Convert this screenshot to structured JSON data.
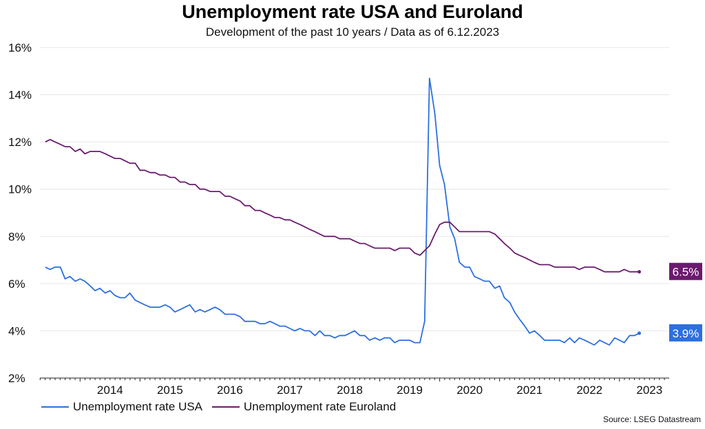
{
  "chart_data": {
    "type": "line",
    "title": "Unemployment rate USA and Euroland",
    "subtitle": "Development of the past 10 years / Data as of 6.12.2023",
    "source": "Source: LSEG Datastream",
    "ylim": [
      2,
      16
    ],
    "yticks": [
      "2%",
      "4%",
      "6%",
      "8%",
      "10%",
      "12%",
      "14%",
      "16%"
    ],
    "ytick_values": [
      2,
      4,
      6,
      8,
      10,
      12,
      14,
      16
    ],
    "xlim": [
      2013.33,
      2023.83
    ],
    "xticks": [
      "2014",
      "2015",
      "2016",
      "2017",
      "2018",
      "2019",
      "2020",
      "2021",
      "2022",
      "2023"
    ],
    "xtick_values": [
      2014,
      2015,
      2016,
      2017,
      2018,
      2019,
      2020,
      2021,
      2022,
      2023
    ],
    "grid": "horizontal",
    "legend_position": "bottom-left",
    "series": [
      {
        "name": "Unemployment rate USA",
        "color": "#2c6fe0",
        "end_label": "3.9%",
        "x": [
          2013.42,
          2013.5,
          2013.58,
          2013.67,
          2013.75,
          2013.83,
          2013.92,
          2014.0,
          2014.08,
          2014.17,
          2014.25,
          2014.33,
          2014.42,
          2014.5,
          2014.58,
          2014.67,
          2014.75,
          2014.83,
          2014.92,
          2015.0,
          2015.08,
          2015.17,
          2015.25,
          2015.33,
          2015.42,
          2015.5,
          2015.58,
          2015.67,
          2015.75,
          2015.83,
          2015.92,
          2016.0,
          2016.08,
          2016.17,
          2016.25,
          2016.33,
          2016.42,
          2016.5,
          2016.58,
          2016.67,
          2016.75,
          2016.83,
          2016.92,
          2017.0,
          2017.08,
          2017.17,
          2017.25,
          2017.33,
          2017.42,
          2017.5,
          2017.58,
          2017.67,
          2017.75,
          2017.83,
          2017.92,
          2018.0,
          2018.08,
          2018.17,
          2018.25,
          2018.33,
          2018.42,
          2018.5,
          2018.58,
          2018.67,
          2018.75,
          2018.83,
          2018.92,
          2019.0,
          2019.08,
          2019.17,
          2019.25,
          2019.33,
          2019.42,
          2019.5,
          2019.58,
          2019.67,
          2019.75,
          2019.83,
          2019.92,
          2020.0,
          2020.08,
          2020.17,
          2020.25,
          2020.33,
          2020.42,
          2020.5,
          2020.58,
          2020.67,
          2020.75,
          2020.83,
          2020.92,
          2021.0,
          2021.08,
          2021.17,
          2021.25,
          2021.33,
          2021.42,
          2021.5,
          2021.58,
          2021.67,
          2021.75,
          2021.83,
          2021.92,
          2022.0,
          2022.08,
          2022.17,
          2022.25,
          2022.33,
          2022.42,
          2022.5,
          2022.58,
          2022.67,
          2022.75,
          2022.83,
          2022.92,
          2023.0,
          2023.08,
          2023.17,
          2023.25,
          2023.33
        ],
        "values": [
          6.7,
          6.6,
          6.7,
          6.7,
          6.2,
          6.3,
          6.1,
          6.2,
          6.1,
          5.9,
          5.7,
          5.8,
          5.6,
          5.7,
          5.5,
          5.4,
          5.4,
          5.6,
          5.3,
          5.2,
          5.1,
          5.0,
          5.0,
          5.0,
          5.1,
          5.0,
          4.8,
          4.9,
          5.0,
          5.1,
          4.8,
          4.9,
          4.8,
          4.9,
          5.0,
          4.9,
          4.7,
          4.7,
          4.7,
          4.6,
          4.4,
          4.4,
          4.4,
          4.3,
          4.3,
          4.4,
          4.3,
          4.2,
          4.2,
          4.1,
          4.0,
          4.1,
          4.0,
          4.0,
          3.8,
          4.0,
          3.8,
          3.8,
          3.7,
          3.8,
          3.8,
          3.9,
          4.0,
          3.8,
          3.8,
          3.6,
          3.7,
          3.6,
          3.7,
          3.7,
          3.5,
          3.6,
          3.6,
          3.6,
          3.5,
          3.5,
          4.4,
          14.7,
          13.2,
          11.0,
          10.2,
          8.4,
          7.9,
          6.9,
          6.7,
          6.7,
          6.3,
          6.2,
          6.1,
          6.1,
          5.8,
          5.9,
          5.4,
          5.2,
          4.8,
          4.5,
          4.2,
          3.9,
          4.0,
          3.8,
          3.6,
          3.6,
          3.6,
          3.6,
          3.5,
          3.7,
          3.5,
          3.7,
          3.6,
          3.5,
          3.4,
          3.6,
          3.5,
          3.4,
          3.7,
          3.6,
          3.5,
          3.8,
          3.8,
          3.9
        ]
      },
      {
        "name": "Unemployment rate Euroland",
        "color": "#6b1a6e",
        "end_label": "6.5%",
        "x": [
          2013.42,
          2013.5,
          2013.58,
          2013.67,
          2013.75,
          2013.83,
          2013.92,
          2014.0,
          2014.08,
          2014.17,
          2014.25,
          2014.33,
          2014.42,
          2014.5,
          2014.58,
          2014.67,
          2014.75,
          2014.83,
          2014.92,
          2015.0,
          2015.08,
          2015.17,
          2015.25,
          2015.33,
          2015.42,
          2015.5,
          2015.58,
          2015.67,
          2015.75,
          2015.83,
          2015.92,
          2016.0,
          2016.08,
          2016.17,
          2016.25,
          2016.33,
          2016.42,
          2016.5,
          2016.58,
          2016.67,
          2016.75,
          2016.83,
          2016.92,
          2017.0,
          2017.08,
          2017.17,
          2017.25,
          2017.33,
          2017.42,
          2017.5,
          2017.58,
          2017.67,
          2017.75,
          2017.83,
          2017.92,
          2018.0,
          2018.08,
          2018.17,
          2018.25,
          2018.33,
          2018.42,
          2018.5,
          2018.58,
          2018.67,
          2018.75,
          2018.83,
          2018.92,
          2019.0,
          2019.08,
          2019.17,
          2019.25,
          2019.33,
          2019.42,
          2019.5,
          2019.58,
          2019.67,
          2019.75,
          2019.83,
          2019.92,
          2020.0,
          2020.08,
          2020.17,
          2020.25,
          2020.33,
          2020.42,
          2020.5,
          2020.58,
          2020.67,
          2020.75,
          2020.83,
          2020.92,
          2021.0,
          2021.08,
          2021.17,
          2021.25,
          2021.33,
          2021.42,
          2021.5,
          2021.58,
          2021.67,
          2021.75,
          2021.83,
          2021.92,
          2022.0,
          2022.08,
          2022.17,
          2022.25,
          2022.33,
          2022.42,
          2022.5,
          2022.58,
          2022.67,
          2022.75,
          2022.83,
          2022.92,
          2023.0,
          2023.08,
          2023.17,
          2023.25,
          2023.33
        ],
        "values": [
          12.0,
          12.1,
          12.0,
          11.9,
          11.8,
          11.8,
          11.6,
          11.7,
          11.5,
          11.6,
          11.6,
          11.6,
          11.5,
          11.4,
          11.3,
          11.3,
          11.2,
          11.1,
          11.1,
          10.8,
          10.8,
          10.7,
          10.7,
          10.6,
          10.6,
          10.5,
          10.5,
          10.3,
          10.3,
          10.2,
          10.2,
          10.0,
          10.0,
          9.9,
          9.9,
          9.9,
          9.7,
          9.7,
          9.6,
          9.5,
          9.3,
          9.3,
          9.1,
          9.1,
          9.0,
          8.9,
          8.8,
          8.8,
          8.7,
          8.7,
          8.6,
          8.5,
          8.4,
          8.3,
          8.2,
          8.1,
          8.0,
          8.0,
          8.0,
          7.9,
          7.9,
          7.9,
          7.8,
          7.7,
          7.7,
          7.6,
          7.5,
          7.5,
          7.5,
          7.5,
          7.4,
          7.5,
          7.5,
          7.5,
          7.3,
          7.2,
          7.4,
          7.6,
          8.1,
          8.5,
          8.6,
          8.6,
          8.4,
          8.2,
          8.2,
          8.2,
          8.2,
          8.2,
          8.2,
          8.2,
          8.1,
          7.9,
          7.7,
          7.5,
          7.3,
          7.2,
          7.1,
          7.0,
          6.9,
          6.8,
          6.8,
          6.8,
          6.7,
          6.7,
          6.7,
          6.7,
          6.7,
          6.6,
          6.7,
          6.7,
          6.7,
          6.6,
          6.5,
          6.5,
          6.5,
          6.5,
          6.6,
          6.5,
          6.5,
          6.5
        ]
      }
    ]
  }
}
